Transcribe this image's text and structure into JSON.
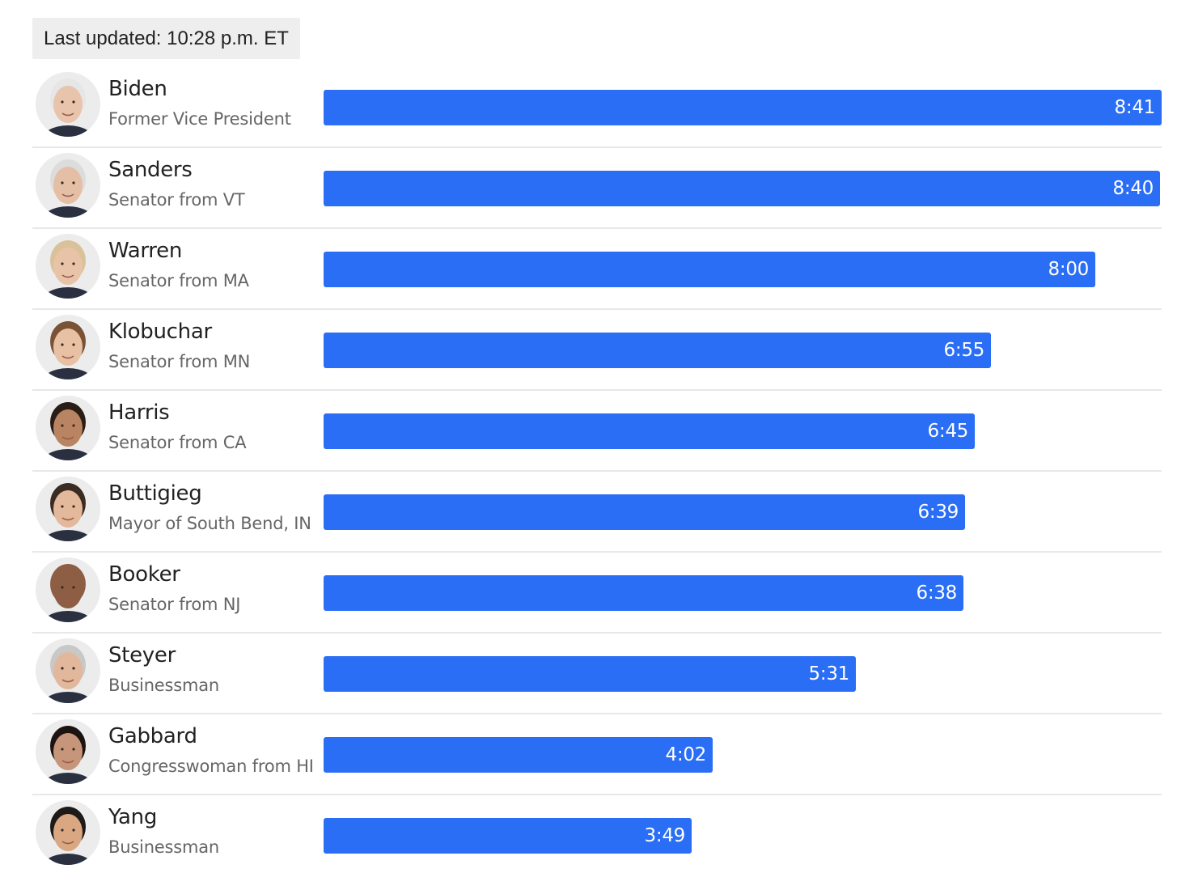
{
  "header": {
    "last_updated": "Last updated: 10:28 p.m. ET"
  },
  "colors": {
    "bar": "#2a6ef5",
    "label": "#ffffff",
    "divider": "#e8e8e8"
  },
  "chart_data": {
    "type": "bar",
    "orientation": "horizontal",
    "categories": [
      "Biden",
      "Sanders",
      "Warren",
      "Klobuchar",
      "Harris",
      "Buttigieg",
      "Booker",
      "Steyer",
      "Gabbard",
      "Yang"
    ],
    "subtitles": [
      "Former Vice President",
      "Senator from VT",
      "Senator from MA",
      "Senator from MN",
      "Senator from CA",
      "Mayor of South Bend, IN",
      "Senator from NJ",
      "Businessman",
      "Congresswoman from HI",
      "Businessman"
    ],
    "value_labels": [
      "8:41",
      "8:40",
      "8:00",
      "6:55",
      "6:45",
      "6:39",
      "6:38",
      "5:31",
      "4:02",
      "3:49"
    ],
    "values_seconds": [
      521,
      520,
      480,
      415,
      405,
      399,
      398,
      331,
      242,
      229
    ],
    "xlim": [
      0,
      521
    ],
    "grid": false,
    "legend": "none"
  },
  "avatars": [
    {
      "icon": "biden-avatar-icon",
      "skin": "#e8c4ad",
      "hair": "#e6e6e6",
      "bg": "#ececec"
    },
    {
      "icon": "sanders-avatar-icon",
      "skin": "#e5bfa5",
      "hair": "#dcdcdc",
      "bg": "#ececec"
    },
    {
      "icon": "warren-avatar-icon",
      "skin": "#e9c3a8",
      "hair": "#d9c29a",
      "bg": "#ececec"
    },
    {
      "icon": "klobuchar-avatar-icon",
      "skin": "#e8c0a4",
      "hair": "#7a5236",
      "bg": "#ececec"
    },
    {
      "icon": "harris-avatar-icon",
      "skin": "#b98462",
      "hair": "#2a1d16",
      "bg": "#ececec"
    },
    {
      "icon": "buttigieg-avatar-icon",
      "skin": "#e3b89b",
      "hair": "#3a2c22",
      "bg": "#ececec"
    },
    {
      "icon": "booker-avatar-icon",
      "skin": "#8d5e44",
      "hair": "#8d5e44",
      "bg": "#ececec"
    },
    {
      "icon": "steyer-avatar-icon",
      "skin": "#e2b89c",
      "hair": "#c8c8c8",
      "bg": "#ececec"
    },
    {
      "icon": "gabbard-avatar-icon",
      "skin": "#c7967a",
      "hair": "#1c1410",
      "bg": "#ececec"
    },
    {
      "icon": "yang-avatar-icon",
      "skin": "#d9a883",
      "hair": "#1e1a18",
      "bg": "#ececec"
    }
  ]
}
